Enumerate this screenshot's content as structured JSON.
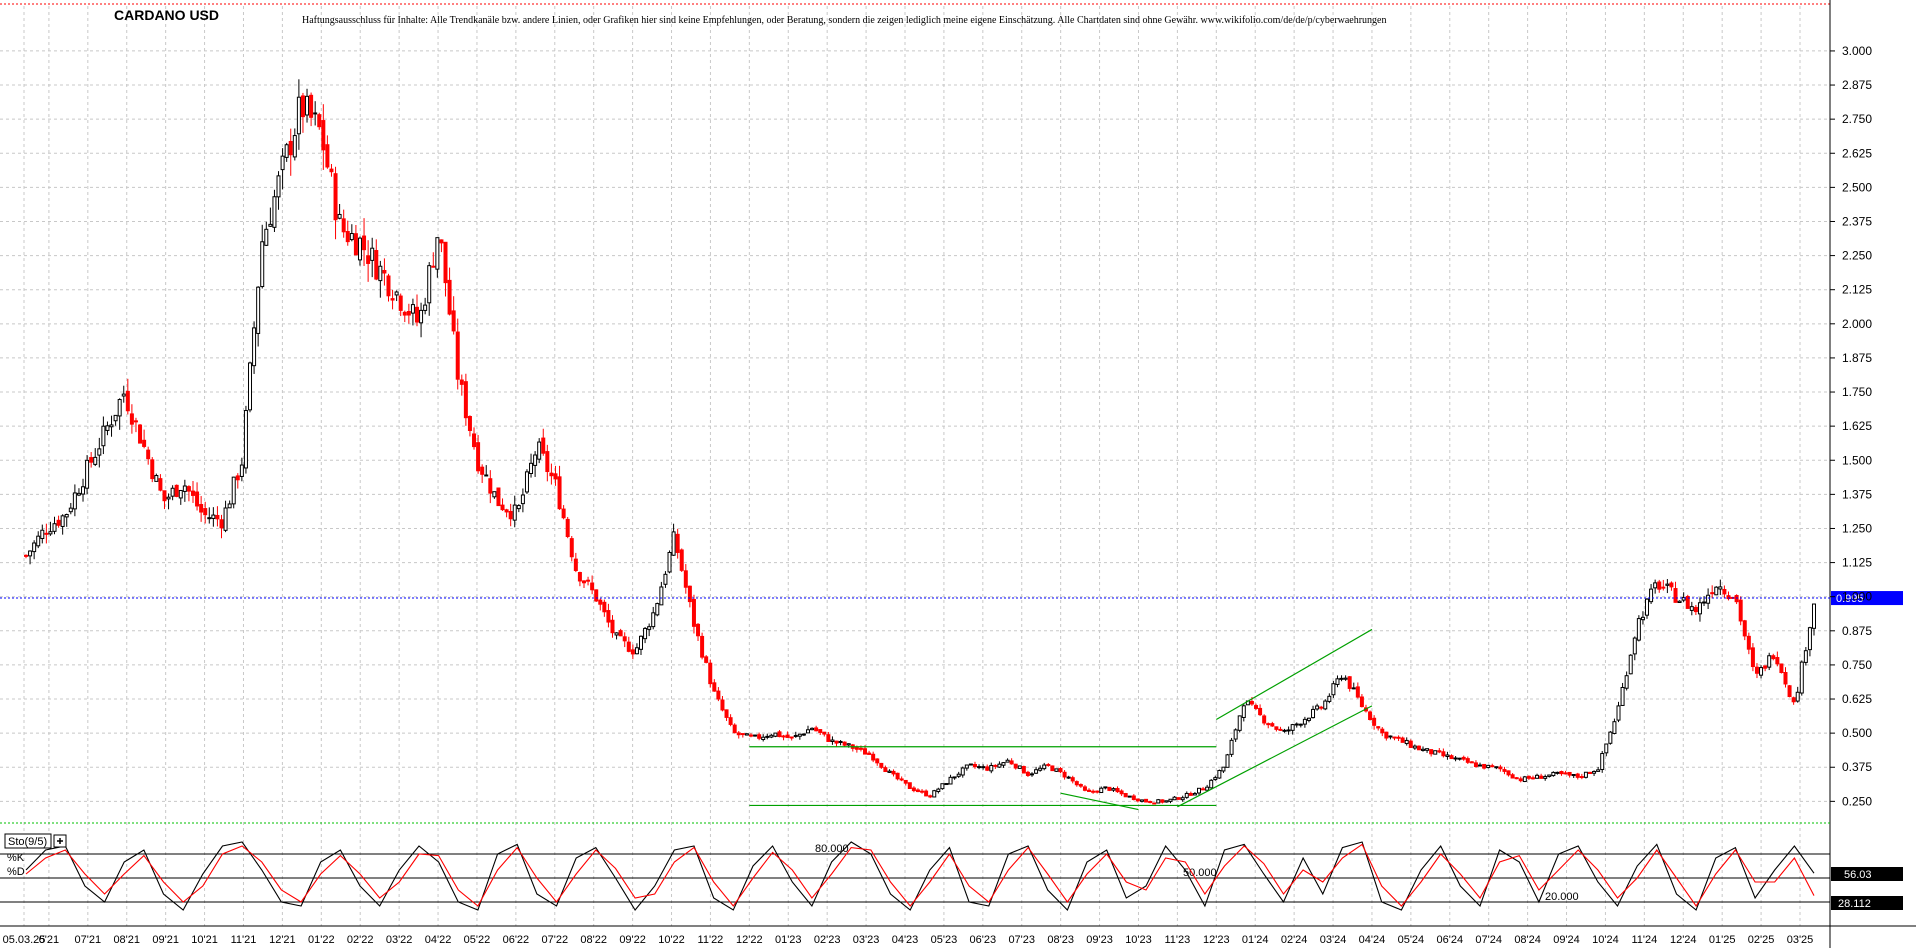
{
  "chart_data": [
    {
      "type": "candlestick",
      "title": "CARDANO USD",
      "disclaimer": "Haftungsausschluss für Inhalte: Alle Trendkanäle bzw. andere Linien, oder Grafiken hier sind keine Empfehlungen, oder Beratung, sondern die zeigen lediglich meine eigene Einschätzung. Alle Chartdaten sind ohne Gewähr.  www.wikifolio.com/de/de/p/cyberwaehrungen",
      "y_ticks": [
        "3.000",
        "2.875",
        "2.750",
        "2.625",
        "2.500",
        "2.375",
        "2.250",
        "2.125",
        "2.000",
        "1.875",
        "1.750",
        "1.625",
        "1.500",
        "1.375",
        "1.250",
        "1.125",
        "1.000",
        "0.875",
        "0.750",
        "0.625",
        "0.500",
        "0.375",
        "0.250"
      ],
      "y_tick_values": [
        3.0,
        2.875,
        2.75,
        2.625,
        2.5,
        2.375,
        2.25,
        2.125,
        2.0,
        1.875,
        1.75,
        1.625,
        1.5,
        1.375,
        1.25,
        1.125,
        1.0,
        0.875,
        0.75,
        0.625,
        0.5,
        0.375,
        0.25
      ],
      "ylim": [
        0.2,
        3.15
      ],
      "x_ticks": [
        "05.03.25",
        "6'21",
        "07'21",
        "08'21",
        "09'21",
        "10'21",
        "11'21",
        "12'21",
        "01'22",
        "02'22",
        "03'22",
        "04'22",
        "05'22",
        "06'22",
        "07'22",
        "08'22",
        "09'22",
        "10'22",
        "11'22",
        "12'22",
        "01'23",
        "02'23",
        "03'23",
        "04'23",
        "05'23",
        "06'23",
        "07'23",
        "08'23",
        "09'23",
        "10'23",
        "11'23",
        "12'23",
        "01'24",
        "02'24",
        "03'24",
        "04'24",
        "05'24",
        "06'24",
        "07'24",
        "08'24",
        "09'24",
        "10'24",
        "11'24",
        "12'24",
        "01'25",
        "02'25",
        "03'25"
      ],
      "x_range": [
        "2021-05",
        "2025-03"
      ],
      "series": [
        {
          "values": [
            1.15,
            1.25,
            1.3,
            1.45,
            1.6,
            1.75,
            1.55,
            1.35,
            1.42,
            1.3,
            1.28,
            1.5,
            2.3,
            2.55,
            2.8,
            2.7,
            2.35,
            2.3,
            2.2,
            2.1,
            2.0,
            2.35,
            1.8,
            1.5,
            1.35,
            1.3,
            1.55,
            1.4,
            1.1,
            1.0,
            0.85,
            0.8,
            0.95,
            1.22,
            0.9,
            0.65,
            0.5,
            0.48,
            0.5,
            0.48,
            0.52,
            0.47,
            0.45,
            0.42,
            0.35,
            0.3,
            0.27,
            0.33,
            0.38,
            0.37,
            0.4,
            0.35,
            0.38,
            0.34,
            0.28,
            0.3,
            0.27,
            0.25,
            0.25,
            0.27,
            0.3,
            0.38,
            0.62,
            0.55,
            0.5,
            0.55,
            0.6,
            0.72,
            0.6,
            0.5,
            0.47,
            0.44,
            0.42,
            0.4,
            0.38,
            0.37,
            0.33,
            0.34,
            0.35,
            0.34,
            0.37,
            0.58,
            0.9,
            1.05,
            1.0,
            0.95,
            1.05,
            1.0,
            0.7,
            0.8,
            0.6,
            0.98
          ]
        }
      ],
      "current_price": "0.995",
      "trend_lines": [
        {
          "from": [
            "12'22",
            0.45
          ],
          "to": [
            "12'23",
            0.45
          ]
        },
        {
          "from": [
            "12'22",
            0.235
          ],
          "to": [
            "12'23",
            0.235
          ]
        },
        {
          "from": [
            "12'23",
            0.55
          ],
          "to": [
            "04'24",
            0.88
          ]
        },
        {
          "from": [
            "11'23",
            0.23
          ],
          "to": [
            "04'24",
            0.6
          ]
        },
        {
          "from": [
            "08'23",
            0.28
          ],
          "to": [
            "10'23",
            0.22
          ]
        }
      ]
    },
    {
      "type": "line",
      "indicator_label": "Sto(9/5)",
      "legend": [
        {
          "name": "%K",
          "color": "#000000"
        },
        {
          "name": "%D",
          "color": "#ff0000"
        }
      ],
      "levels": [
        {
          "value": 80,
          "label": "80.000"
        },
        {
          "value": 50,
          "label": "50.000"
        },
        {
          "value": 20,
          "label": "20.000"
        }
      ],
      "ylim": [
        0,
        100
      ],
      "k_value": "56.03",
      "d_value": "28.112",
      "series": [
        {
          "name": "%K",
          "values": [
            60,
            85,
            90,
            40,
            20,
            70,
            85,
            30,
            10,
            55,
            90,
            95,
            60,
            20,
            15,
            70,
            85,
            40,
            15,
            60,
            90,
            70,
            20,
            10,
            80,
            92,
            30,
            15,
            75,
            88,
            50,
            10,
            40,
            85,
            90,
            25,
            10,
            65,
            90,
            45,
            15,
            70,
            95,
            80,
            30,
            10,
            60,
            88,
            20,
            15,
            80,
            90,
            35,
            10,
            70,
            85,
            25,
            40,
            90,
            60,
            15,
            85,
            92,
            55,
            20,
            75,
            30,
            88,
            95,
            20,
            10,
            60,
            90,
            40,
            15,
            85,
            70,
            20,
            80,
            90,
            45,
            15,
            65,
            92,
            30,
            10,
            75,
            88,
            25,
            60,
            90,
            56
          ]
        },
        {
          "name": "%D",
          "values": [
            55,
            75,
            85,
            55,
            30,
            55,
            78,
            45,
            20,
            40,
            80,
            90,
            70,
            35,
            20,
            55,
            78,
            55,
            25,
            45,
            80,
            78,
            35,
            15,
            60,
            88,
            50,
            20,
            55,
            85,
            62,
            25,
            30,
            70,
            88,
            45,
            15,
            50,
            82,
            60,
            25,
            55,
            88,
            85,
            45,
            15,
            45,
            80,
            40,
            20,
            60,
            88,
            55,
            20,
            55,
            80,
            45,
            35,
            75,
            70,
            30,
            65,
            90,
            68,
            30,
            60,
            45,
            75,
            92,
            40,
            15,
            45,
            80,
            55,
            25,
            70,
            78,
            35,
            60,
            85,
            60,
            25,
            50,
            85,
            50,
            15,
            55,
            85,
            45,
            45,
            75,
            28
          ]
        }
      ]
    }
  ],
  "colors": {
    "bull": "#000000",
    "bear": "#ff0000",
    "trend": "#00a000",
    "price_line": "#0000ff",
    "grid": "#c8c8c8"
  },
  "icons": [
    "plus-icon"
  ]
}
